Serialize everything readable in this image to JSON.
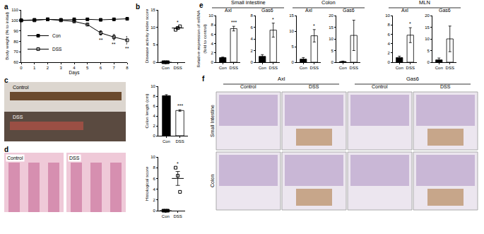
{
  "chart_data": [
    {
      "panel": "a",
      "type": "line",
      "x_label": "Days",
      "y_label": "Body weight (% to initial)",
      "x": [
        0,
        1,
        2,
        3,
        4,
        5,
        6,
        7,
        8
      ],
      "xlim": [
        0,
        8
      ],
      "xticks": [
        0,
        1,
        2,
        3,
        4,
        5,
        6,
        7,
        8
      ],
      "ylim": [
        60,
        110
      ],
      "yticks": [
        60,
        70,
        80,
        90,
        100,
        110
      ],
      "legend": "lower left",
      "series": [
        {
          "name": "Con",
          "color": "#000000",
          "marker": "square",
          "values": [
            100,
            100.5,
            101,
            100.5,
            101,
            101,
            100.5,
            101,
            101.5
          ],
          "errors": [
            0.3,
            0.3,
            0.4,
            0.3,
            0.4,
            0.4,
            0.5,
            0.5,
            0.5
          ]
        },
        {
          "name": "DSS",
          "color": "#000000",
          "marker": "square-open",
          "values": [
            100,
            100,
            101,
            100,
            99,
            96,
            88,
            84,
            81
          ],
          "errors": [
            0.3,
            0.4,
            0.5,
            0.5,
            0.8,
            1.2,
            2,
            2.5,
            3.5
          ]
        }
      ],
      "annotations": [
        {
          "x": 6,
          "text": "**"
        },
        {
          "x": 7,
          "text": "**"
        },
        {
          "x": 8,
          "text": "**"
        }
      ]
    },
    {
      "panel": "b",
      "type": "dot",
      "y_label": "Disease activity index score",
      "categories": [
        "Con",
        "DSS"
      ],
      "markers": [
        "square",
        "square-open"
      ],
      "colors": [
        "#000000",
        "#000000"
      ],
      "points": [
        [
          0,
          0,
          0
        ],
        [
          9.3,
          9.8,
          10.3
        ]
      ],
      "values": [
        0,
        9.8
      ],
      "errors": [
        0,
        0.3
      ],
      "ylim": [
        0,
        15
      ],
      "yticks": [
        0,
        5,
        10,
        15
      ],
      "annotations": [
        {
          "x": "DSS",
          "text": "*"
        }
      ]
    },
    {
      "panel": "c",
      "type": "photo",
      "labels": [
        "Control",
        "DSS"
      ]
    },
    {
      "panel": "c",
      "type": "bar",
      "y_label": "Colon length (cm)",
      "categories": [
        "Con",
        "DSS"
      ],
      "colors": [
        "#000000",
        "#ffffff"
      ],
      "values": [
        8.1,
        5.1
      ],
      "errors": [
        0.2,
        0.15
      ],
      "ylim": [
        0,
        10
      ],
      "yticks": [
        0,
        2,
        4,
        6,
        8,
        10
      ],
      "annotations": [
        {
          "x": "DSS",
          "text": "***"
        }
      ]
    },
    {
      "panel": "d",
      "type": "photo",
      "labels": [
        "Control",
        "DSS"
      ]
    },
    {
      "panel": "d",
      "type": "dot",
      "y_label": "Histological score",
      "categories": [
        "Con",
        "DSS"
      ],
      "markers": [
        "square",
        "square-open"
      ],
      "colors": [
        "#000000",
        "#000000"
      ],
      "points": [
        [
          0,
          0,
          0
        ],
        [
          8,
          6.5,
          3.5
        ]
      ],
      "values": [
        0,
        6
      ],
      "errors": [
        0,
        1.3
      ],
      "ylim": [
        0,
        10
      ],
      "yticks": [
        0,
        2,
        4,
        6,
        8,
        10
      ],
      "annotations": [
        {
          "x": "DSS",
          "text": "*"
        }
      ]
    },
    {
      "panel": "e",
      "type": "bar",
      "group": "Small intestine",
      "title": "Axl",
      "y_label": "Relative expression of mRNA\n(fold to control)",
      "categories": [
        "Con",
        "DSS"
      ],
      "colors": [
        "#000000",
        "#ffffff"
      ],
      "values": [
        1,
        7.2
      ],
      "errors": [
        0.1,
        0.5
      ],
      "ylim": [
        0,
        10
      ],
      "yticks": [
        0,
        2,
        4,
        6,
        8,
        10
      ],
      "annotations": [
        {
          "x": "DSS",
          "text": "***"
        }
      ]
    },
    {
      "panel": "e",
      "type": "bar",
      "group": "Small intestine",
      "title": "Gas6",
      "categories": [
        "Con",
        "DSS"
      ],
      "colors": [
        "#000000",
        "#ffffff"
      ],
      "values": [
        1,
        5.5
      ],
      "errors": [
        0.3,
        1.2
      ],
      "ylim": [
        0,
        8
      ],
      "yticks": [
        0,
        2,
        4,
        6,
        8
      ],
      "annotations": [
        {
          "x": "DSS",
          "text": "*"
        }
      ]
    },
    {
      "panel": "e",
      "type": "bar",
      "group": "Colon",
      "title": "Axl",
      "categories": [
        "Con",
        "DSS"
      ],
      "colors": [
        "#000000",
        "#ffffff"
      ],
      "values": [
        1,
        8.5
      ],
      "errors": [
        0.5,
        2
      ],
      "ylim": [
        0,
        15
      ],
      "yticks": [
        0,
        5,
        10,
        15
      ],
      "annotations": [
        {
          "x": "DSS",
          "text": "*"
        }
      ]
    },
    {
      "panel": "e",
      "type": "bar",
      "group": "Colon",
      "title": "Gas6",
      "categories": [
        "Con",
        "DSS"
      ],
      "colors": [
        "#000000",
        "#ffffff"
      ],
      "values": [
        0.3,
        11.5
      ],
      "errors": [
        0.2,
        6.5
      ],
      "ylim": [
        0,
        20
      ],
      "yticks": [
        0,
        5,
        10,
        15,
        20
      ]
    },
    {
      "panel": "e",
      "type": "bar",
      "group": "MLN",
      "title": "Axl",
      "categories": [
        "Con",
        "DSS"
      ],
      "colors": [
        "#000000",
        "#ffffff"
      ],
      "values": [
        1,
        5.8
      ],
      "errors": [
        0.3,
        1.6
      ],
      "ylim": [
        0,
        10
      ],
      "yticks": [
        0,
        2,
        4,
        6,
        8,
        10
      ],
      "annotations": [
        {
          "x": "DSS",
          "text": "*"
        }
      ]
    },
    {
      "panel": "e",
      "type": "bar",
      "group": "MLN",
      "title": "Gas6",
      "categories": [
        "Con",
        "DSS"
      ],
      "colors": [
        "#000000",
        "#ffffff"
      ],
      "values": [
        1,
        10
      ],
      "errors": [
        0.8,
        5.5
      ],
      "ylim": [
        0,
        20
      ],
      "yticks": [
        0,
        5,
        10,
        15,
        20
      ]
    },
    {
      "panel": "f",
      "type": "photo_grid",
      "columns": [
        {
          "group": "Axl",
          "labels": [
            "Control",
            "DSS"
          ]
        },
        {
          "group": "Gas6",
          "labels": [
            "Control",
            "DSS"
          ]
        }
      ],
      "rows": [
        "Small Intestine",
        "Colon"
      ]
    }
  ]
}
